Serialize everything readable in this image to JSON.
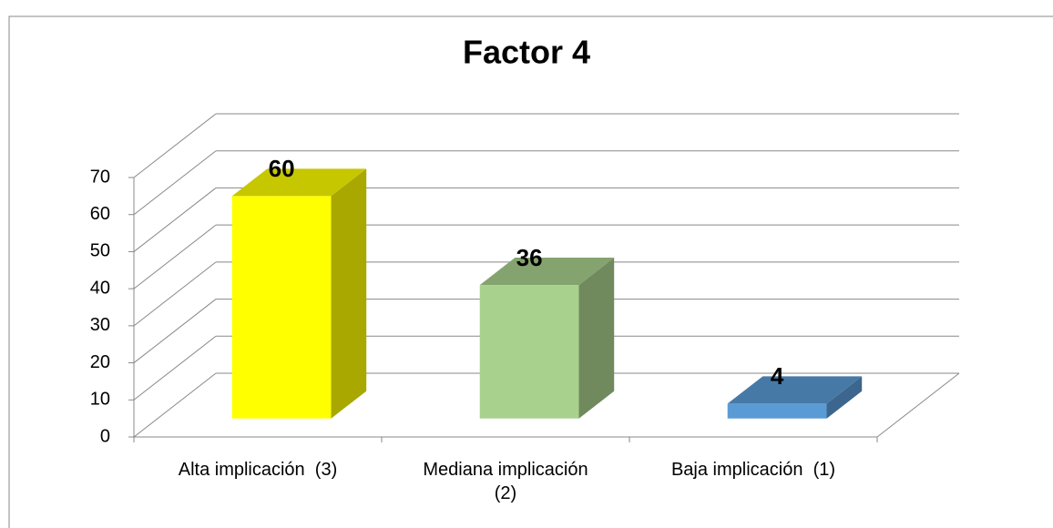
{
  "chart_data": {
    "type": "bar3d",
    "title": "Factor  4",
    "categories": [
      "Alta implicación  (3)",
      "Mediana implicación (2)",
      "Baja implicación  (1)"
    ],
    "values": [
      60,
      36,
      4
    ],
    "colors": [
      "#ffff00",
      "#a9d18e",
      "#5b9bd5"
    ],
    "ylim": [
      0,
      70
    ],
    "yticks": [
      0,
      10,
      20,
      30,
      40,
      50,
      60,
      70
    ],
    "grid": true
  }
}
